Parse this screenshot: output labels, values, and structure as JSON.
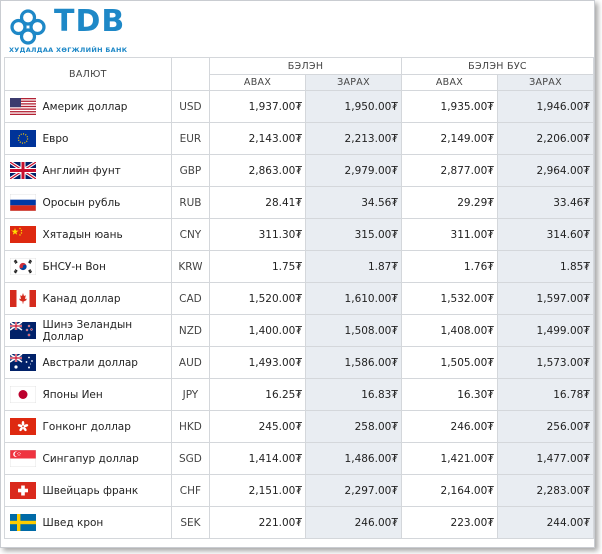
{
  "brand": {
    "name": "TDB",
    "subtitle": "ХУДАЛДАА ХӨГЖЛИЙН БАНК",
    "color": "#1e88c7"
  },
  "table": {
    "currency_header": "ВАЛЮТ",
    "cash_header": "БЭЛЭН",
    "noncash_header": "БЭЛЭН БУС",
    "buy_label": "АВАХ",
    "sell_label": "ЗАРАХ",
    "shade_color": "#e9edf2",
    "rows": [
      {
        "flag": "us-flag-icon",
        "name": "Америк доллар",
        "code": "USD",
        "cash_buy": "1,937.00₮",
        "cash_sell": "1,950.00₮",
        "noncash_buy": "1,935.00₮",
        "noncash_sell": "1,946.00₮"
      },
      {
        "flag": "eu-flag-icon",
        "name": "Евро",
        "code": "EUR",
        "cash_buy": "2,143.00₮",
        "cash_sell": "2,213.00₮",
        "noncash_buy": "2,149.00₮",
        "noncash_sell": "2,206.00₮"
      },
      {
        "flag": "gb-flag-icon",
        "name": "Английн фунт",
        "code": "GBP",
        "cash_buy": "2,863.00₮",
        "cash_sell": "2,979.00₮",
        "noncash_buy": "2,877.00₮",
        "noncash_sell": "2,964.00₮"
      },
      {
        "flag": "ru-flag-icon",
        "name": "Оросын рубль",
        "code": "RUB",
        "cash_buy": "28.41₮",
        "cash_sell": "34.56₮",
        "noncash_buy": "29.29₮",
        "noncash_sell": "33.46₮"
      },
      {
        "flag": "cn-flag-icon",
        "name": "Хятадын юань",
        "code": "CNY",
        "cash_buy": "311.30₮",
        "cash_sell": "315.00₮",
        "noncash_buy": "311.00₮",
        "noncash_sell": "314.60₮"
      },
      {
        "flag": "kr-flag-icon",
        "name": "БНСУ-н Вон",
        "code": "KRW",
        "cash_buy": "1.75₮",
        "cash_sell": "1.87₮",
        "noncash_buy": "1.76₮",
        "noncash_sell": "1.85₮"
      },
      {
        "flag": "ca-flag-icon",
        "name": "Канад доллар",
        "code": "CAD",
        "cash_buy": "1,520.00₮",
        "cash_sell": "1,610.00₮",
        "noncash_buy": "1,532.00₮",
        "noncash_sell": "1,597.00₮"
      },
      {
        "flag": "nz-flag-icon",
        "name": "Шинэ Зеландын Доллар",
        "code": "NZD",
        "cash_buy": "1,400.00₮",
        "cash_sell": "1,508.00₮",
        "noncash_buy": "1,408.00₮",
        "noncash_sell": "1,499.00₮"
      },
      {
        "flag": "au-flag-icon",
        "name": "Австрали доллар",
        "code": "AUD",
        "cash_buy": "1,493.00₮",
        "cash_sell": "1,586.00₮",
        "noncash_buy": "1,505.00₮",
        "noncash_sell": "1,573.00₮"
      },
      {
        "flag": "jp-flag-icon",
        "name": "Японы Иен",
        "code": "JPY",
        "cash_buy": "16.25₮",
        "cash_sell": "16.83₮",
        "noncash_buy": "16.30₮",
        "noncash_sell": "16.78₮"
      },
      {
        "flag": "hk-flag-icon",
        "name": "Гонконг доллар",
        "code": "HKD",
        "cash_buy": "245.00₮",
        "cash_sell": "258.00₮",
        "noncash_buy": "246.00₮",
        "noncash_sell": "256.00₮"
      },
      {
        "flag": "sg-flag-icon",
        "name": "Сингапур доллар",
        "code": "SGD",
        "cash_buy": "1,414.00₮",
        "cash_sell": "1,486.00₮",
        "noncash_buy": "1,421.00₮",
        "noncash_sell": "1,477.00₮"
      },
      {
        "flag": "ch-flag-icon",
        "name": "Швейцарь франк",
        "code": "CHF",
        "cash_buy": "2,151.00₮",
        "cash_sell": "2,297.00₮",
        "noncash_buy": "2,164.00₮",
        "noncash_sell": "2,283.00₮"
      },
      {
        "flag": "se-flag-icon",
        "name": "Швед крон",
        "code": "SEK",
        "cash_buy": "221.00₮",
        "cash_sell": "246.00₮",
        "noncash_buy": "223.00₮",
        "noncash_sell": "244.00₮"
      }
    ]
  }
}
